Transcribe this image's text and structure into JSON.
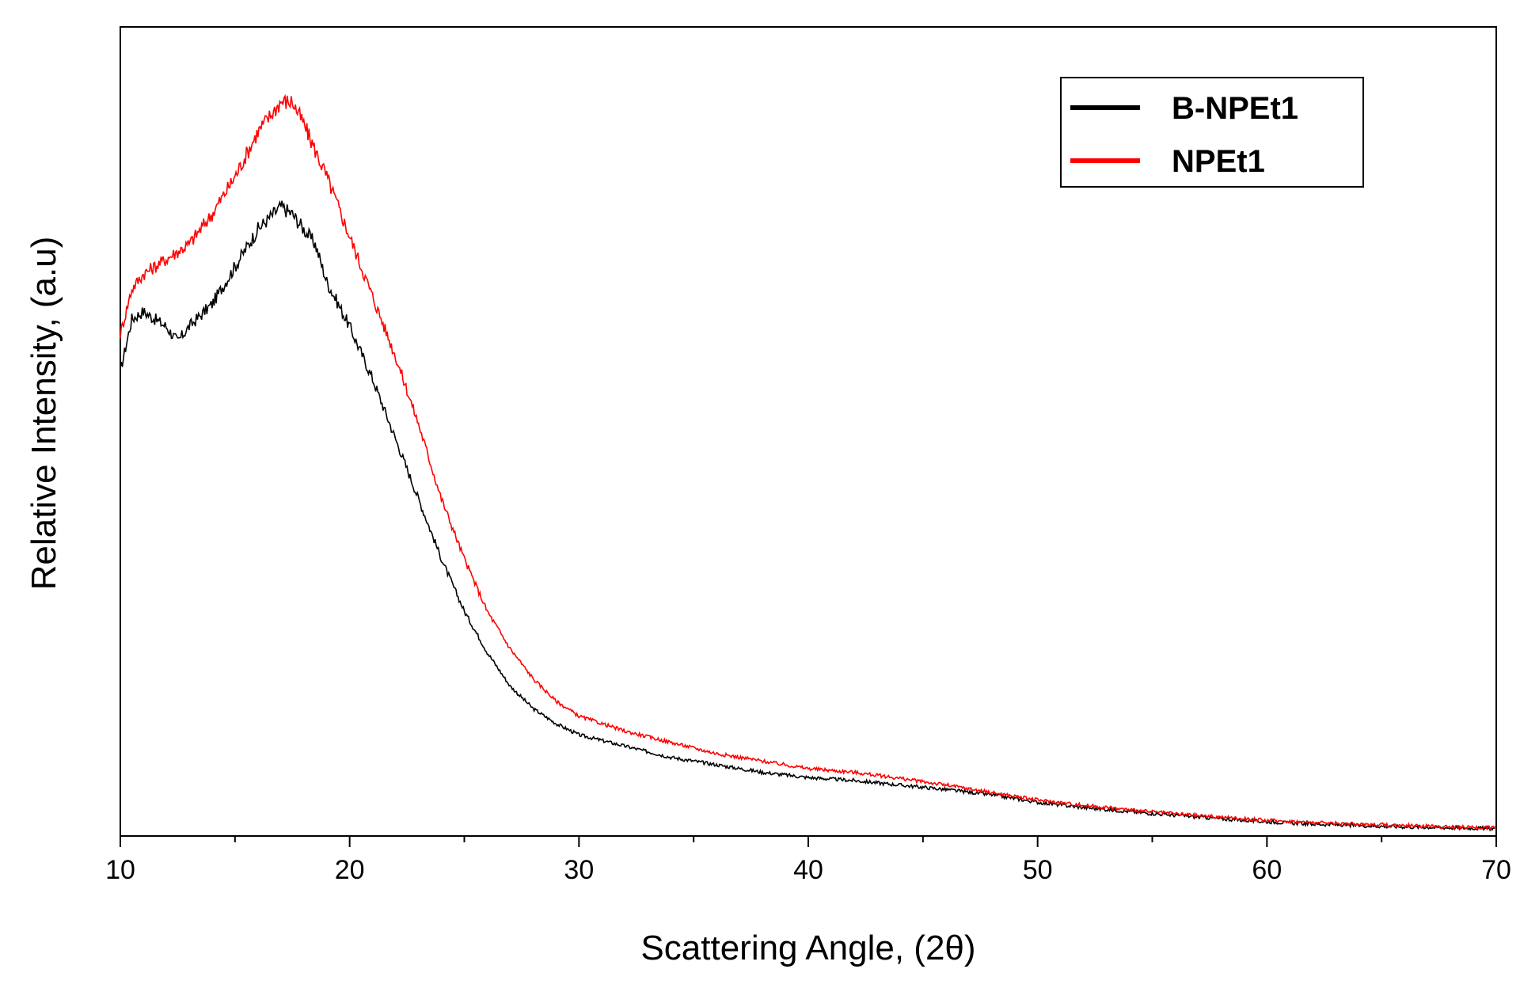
{
  "chart_data": {
    "type": "line",
    "title": "",
    "xlabel": "Scattering Angle, (2θ)",
    "ylabel": "Relative Intensity, (a.u)",
    "xlim": [
      10,
      70
    ],
    "ylim": [
      0,
      1.08
    ],
    "x_ticks": [
      10,
      20,
      30,
      40,
      50,
      60,
      70
    ],
    "x_minor_step": 5,
    "y_ticks": [],
    "grid": false,
    "legend_position": "top-right",
    "series": [
      {
        "name": "B-NPEt1",
        "color": "#000000",
        "x": [
          10,
          10.5,
          11,
          12,
          12.5,
          13,
          14,
          15,
          16,
          17,
          17.5,
          18,
          18.5,
          19,
          20,
          21,
          22,
          23,
          24,
          25,
          26,
          27,
          28,
          29,
          30,
          32,
          34,
          36,
          38,
          40,
          42,
          44,
          46,
          48,
          50,
          52,
          55,
          58,
          60,
          62,
          65,
          68,
          70
        ],
        "values": [
          0.62,
          0.69,
          0.7,
          0.68,
          0.66,
          0.68,
          0.71,
          0.76,
          0.81,
          0.84,
          0.83,
          0.81,
          0.79,
          0.74,
          0.68,
          0.61,
          0.53,
          0.45,
          0.37,
          0.3,
          0.245,
          0.2,
          0.17,
          0.15,
          0.135,
          0.12,
          0.105,
          0.095,
          0.085,
          0.078,
          0.074,
          0.068,
          0.062,
          0.055,
          0.045,
          0.038,
          0.03,
          0.023,
          0.019,
          0.016,
          0.013,
          0.011,
          0.01
        ]
      },
      {
        "name": "NPEt1",
        "color": "#ff0000",
        "x": [
          10,
          10.5,
          11,
          12,
          13,
          14,
          15,
          16,
          17,
          17.5,
          18,
          19,
          20,
          21,
          22,
          23,
          24,
          25,
          26,
          27,
          28,
          29,
          30,
          32,
          34,
          36,
          38,
          40,
          42,
          44,
          46,
          48,
          50,
          52,
          55,
          58,
          60,
          62,
          65,
          68,
          70
        ],
        "values": [
          0.67,
          0.73,
          0.75,
          0.77,
          0.79,
          0.83,
          0.88,
          0.94,
          0.98,
          0.98,
          0.95,
          0.88,
          0.8,
          0.72,
          0.64,
          0.55,
          0.45,
          0.37,
          0.3,
          0.25,
          0.21,
          0.18,
          0.16,
          0.14,
          0.125,
          0.11,
          0.1,
          0.09,
          0.085,
          0.077,
          0.068,
          0.058,
          0.048,
          0.041,
          0.032,
          0.025,
          0.021,
          0.018,
          0.015,
          0.012,
          0.011
        ]
      }
    ]
  }
}
